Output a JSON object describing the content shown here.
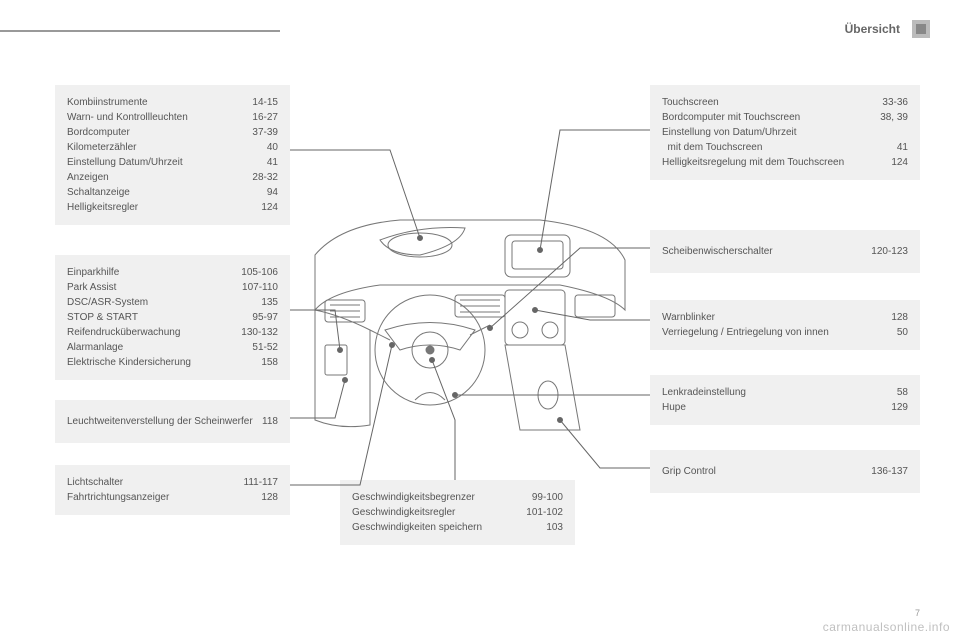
{
  "header": {
    "title": "Übersicht"
  },
  "box1": [
    {
      "label": "Kombiinstrumente",
      "val": "14-15"
    },
    {
      "label": "Warn- und Kontrollleuchten",
      "val": "16-27"
    },
    {
      "label": "Bordcomputer",
      "val": "37-39"
    },
    {
      "label": "Kilometerzähler",
      "val": "40"
    },
    {
      "label": "Einstellung Datum/Uhrzeit",
      "val": "41"
    },
    {
      "label": "Anzeigen",
      "val": "28-32"
    },
    {
      "label": "Schaltanzeige",
      "val": "94"
    },
    {
      "label": "Helligkeitsregler",
      "val": "124"
    }
  ],
  "box2": [
    {
      "label": "Einparkhilfe",
      "val": "105-106"
    },
    {
      "label": "Park Assist",
      "val": "107-110"
    },
    {
      "label": "DSC/ASR-System",
      "val": "135"
    },
    {
      "label": "STOP & START",
      "val": "95-97"
    },
    {
      "label": "Reifendrucküberwachung",
      "val": "130-132"
    },
    {
      "label": "Alarmanlage",
      "val": "51-52"
    },
    {
      "label": "Elektrische Kindersicherung",
      "val": "158"
    }
  ],
  "box3": [
    {
      "label": "Leuchtweitenverstellung der Scheinwerfer",
      "val": "118"
    }
  ],
  "box4": [
    {
      "label": "Lichtschalter",
      "val": "111-117"
    },
    {
      "label": "Fahrtrichtungsanzeiger",
      "val": "128"
    }
  ],
  "box5": [
    {
      "label": "Geschwindigkeitsbegrenzer",
      "val": "99-100"
    },
    {
      "label": "Geschwindigkeitsregler",
      "val": "101-102"
    },
    {
      "label": "Geschwindigkeiten speichern",
      "val": "103"
    }
  ],
  "box6": [
    {
      "label": "Touchscreen",
      "val": "33-36"
    },
    {
      "label": "Bordcomputer mit Touchscreen",
      "val": "38, 39"
    },
    {
      "label": "Einstellung von Datum/Uhrzeit",
      "val": ""
    },
    {
      "label": "  mit dem Touchscreen",
      "val": "41"
    },
    {
      "label": "Helligkeitsregelung mit dem Touchscreen",
      "val": "124"
    }
  ],
  "box7": [
    {
      "label": "Scheibenwischerschalter",
      "val": "120-123"
    }
  ],
  "box8": [
    {
      "label": "Warnblinker",
      "val": "128"
    },
    {
      "label": "Verriegelung / Entriegelung von innen",
      "val": "50"
    }
  ],
  "box9": [
    {
      "label": "Lenkradeinstellung",
      "val": "58"
    },
    {
      "label": "Hupe",
      "val": "129"
    }
  ],
  "box10": [
    {
      "label": "Grip Control",
      "val": "136-137"
    }
  ],
  "watermark": "carmanualsonline.info",
  "pagenum": "7",
  "colors": {
    "box_bg": "#f0f0f0",
    "text": "#555555",
    "line": "#666666"
  }
}
